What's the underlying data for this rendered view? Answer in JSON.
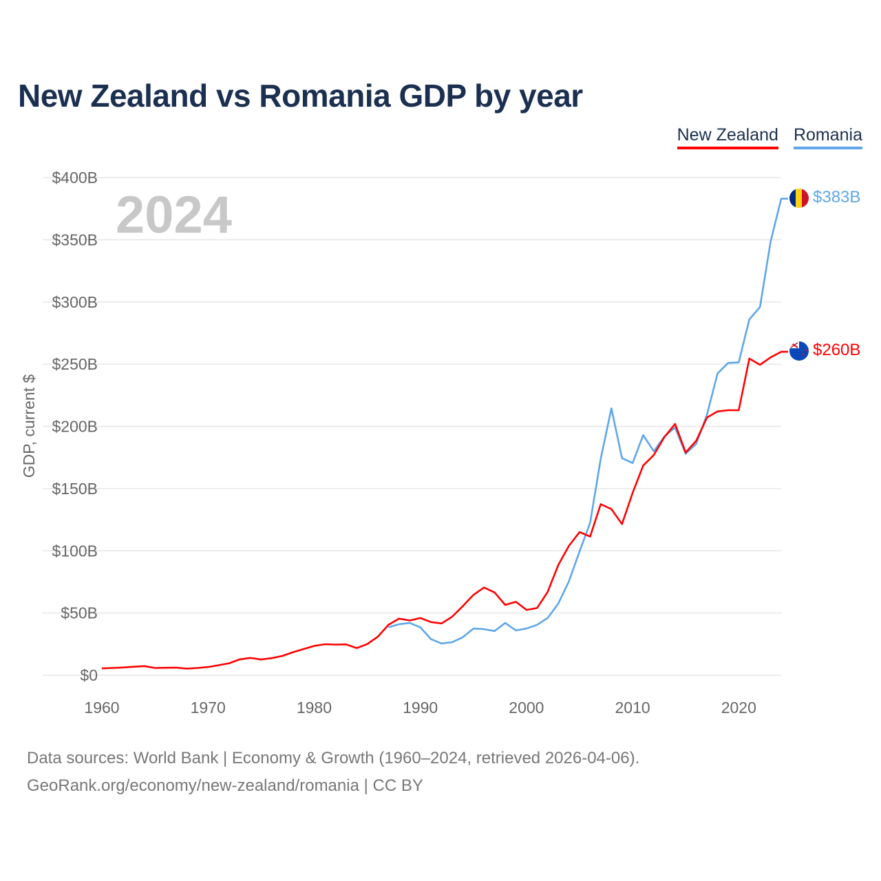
{
  "title": "New Zealand vs Romania GDP by year",
  "legend": [
    {
      "name": "New Zealand",
      "color": "#ff0000"
    },
    {
      "name": "Romania",
      "color": "#5ea6e8"
    }
  ],
  "chart_data": {
    "type": "line",
    "title": "New Zealand vs Romania GDP by year",
    "current_year": "2024",
    "xlabel": "",
    "ylabel": "GDP, current $",
    "xlim": [
      1960,
      2024
    ],
    "ylim": [
      0,
      400
    ],
    "y_unit": "billion USD",
    "grid": true,
    "legend_position": "top-right",
    "x_ticks": [
      1960,
      1970,
      1980,
      1990,
      2000,
      2010,
      2020
    ],
    "y_ticks": [
      0,
      50,
      100,
      150,
      200,
      250,
      300,
      350,
      400
    ],
    "y_tick_labels": [
      "$0",
      "$50B",
      "$100B",
      "$150B",
      "$200B",
      "$250B",
      "$300B",
      "$350B",
      "$400B"
    ],
    "series": [
      {
        "name": "New Zealand",
        "color": "#ff0000",
        "end_label": "$260B",
        "end_icon": "new-zealand-flag-icon",
        "x": [
          1960,
          1961,
          1962,
          1963,
          1964,
          1965,
          1966,
          1967,
          1968,
          1969,
          1970,
          1971,
          1972,
          1973,
          1974,
          1975,
          1976,
          1977,
          1978,
          1979,
          1980,
          1981,
          1982,
          1983,
          1984,
          1985,
          1986,
          1987,
          1988,
          1989,
          1990,
          1991,
          1992,
          1993,
          1994,
          1995,
          1996,
          1997,
          1998,
          1999,
          2000,
          2001,
          2002,
          2003,
          2004,
          2005,
          2006,
          2007,
          2008,
          2009,
          2010,
          2011,
          2012,
          2013,
          2014,
          2015,
          2016,
          2017,
          2018,
          2019,
          2020,
          2021,
          2022,
          2023,
          2024
        ],
        "values": [
          5.5,
          5.8,
          6.2,
          6.8,
          7.3,
          5.8,
          6.0,
          6.1,
          5.3,
          5.8,
          6.6,
          8.0,
          9.6,
          12.8,
          13.9,
          12.6,
          13.7,
          15.5,
          18.5,
          21.0,
          23.5,
          24.9,
          24.6,
          24.8,
          21.8,
          25.0,
          31.0,
          40.5,
          45.5,
          44.0,
          46.0,
          42.7,
          41.6,
          47.0,
          55.5,
          64.5,
          70.5,
          66.5,
          56.5,
          59.0,
          52.5,
          54.0,
          67.0,
          88.5,
          104.0,
          115.0,
          111.5,
          137.5,
          133.5,
          121.5,
          146.5,
          168.5,
          177.0,
          191.5,
          202.0,
          179.0,
          188.5,
          207.0,
          212.0,
          213.0,
          213.0,
          254.5,
          249.5,
          255.5,
          260.0
        ]
      },
      {
        "name": "Romania",
        "color": "#5ea6e8",
        "end_label": "$383B",
        "end_icon": "romania-flag-icon",
        "x": [
          1987,
          1988,
          1989,
          1990,
          1991,
          1992,
          1993,
          1994,
          1995,
          1996,
          1997,
          1998,
          1999,
          2000,
          2001,
          2002,
          2003,
          2004,
          2005,
          2006,
          2007,
          2008,
          2009,
          2010,
          2011,
          2012,
          2013,
          2014,
          2015,
          2016,
          2017,
          2018,
          2019,
          2020,
          2021,
          2022,
          2023,
          2024
        ],
        "values": [
          38.5,
          41.0,
          42.0,
          38.5,
          29.0,
          25.5,
          26.5,
          30.5,
          37.5,
          37.0,
          35.5,
          42.0,
          36.0,
          37.5,
          40.5,
          46.0,
          57.5,
          75.5,
          99.5,
          122.5,
          174.0,
          214.5,
          174.5,
          170.5,
          193.0,
          180.0,
          192.0,
          199.0,
          178.0,
          186.0,
          209.0,
          242.5,
          251.0,
          251.5,
          286.0,
          296.0,
          348.5,
          383.0
        ]
      }
    ]
  },
  "footer": {
    "line1": "Data sources: World Bank | Economy & Growth (1960–2024, retrieved 2026-04-06).",
    "line2": "GeoRank.org/economy/new-zealand/romania | CC BY"
  }
}
